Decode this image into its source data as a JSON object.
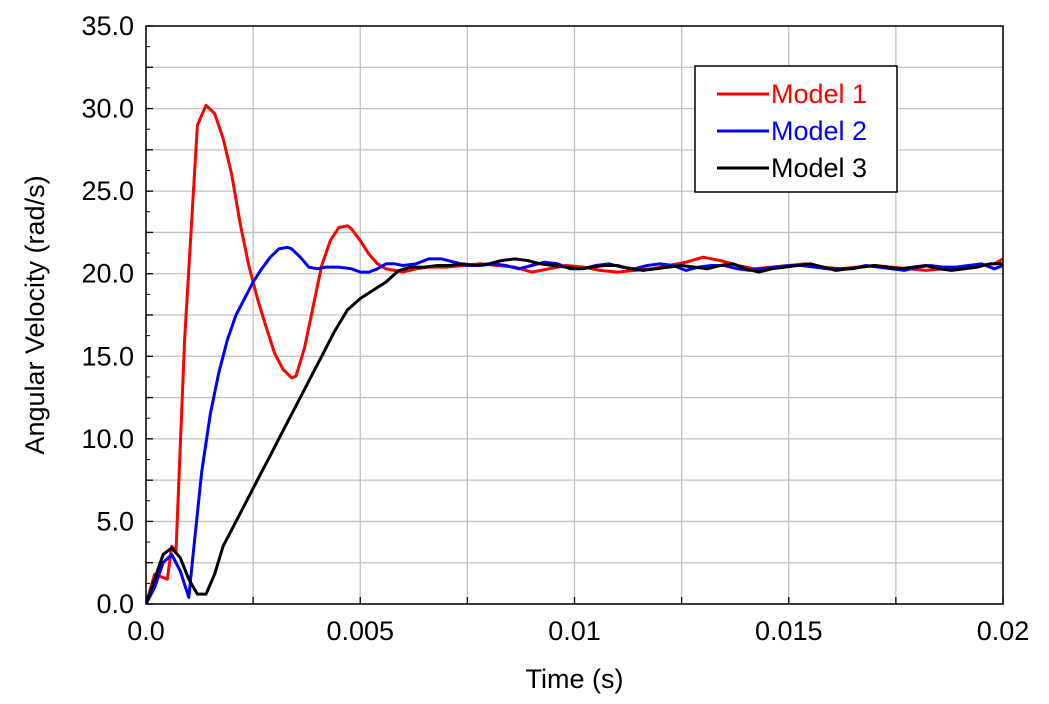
{
  "chart_data": {
    "type": "line",
    "title": "",
    "xlabel": "Time (s)",
    "ylabel": "Angular Velocity (rad/s)",
    "xlim": [
      0,
      0.02
    ],
    "ylim": [
      0,
      35
    ],
    "x_ticks": [
      0,
      0.005,
      0.01,
      0.015,
      0.02
    ],
    "x_tick_labels": [
      "0.0",
      "0.005",
      "0.01",
      "0.015",
      "0.02"
    ],
    "y_ticks": [
      0,
      5,
      10,
      15,
      20,
      25,
      30,
      35
    ],
    "y_tick_labels": [
      "0.0",
      "5.0",
      "10.0",
      "15.0",
      "20.0",
      "25.0",
      "30.0",
      "35.0"
    ],
    "x_minor_step": 0.0025,
    "y_minor_step": 2.5,
    "grid": true,
    "legend_position": "top-right",
    "series": [
      {
        "name": "Model 1",
        "color": "#ff0000",
        "x": [
          0,
          0.0002,
          0.0005,
          0.0006,
          0.0007,
          0.0009,
          0.0012,
          0.0014,
          0.0016,
          0.0018,
          0.002,
          0.0022,
          0.0024,
          0.0026,
          0.0028,
          0.003,
          0.0032,
          0.0034,
          0.0035,
          0.0037,
          0.0039,
          0.0041,
          0.0043,
          0.0045,
          0.0047,
          0.0048,
          0.005,
          0.0052,
          0.0054,
          0.0056,
          0.0058,
          0.006,
          0.0063,
          0.0066,
          0.007,
          0.0074,
          0.0078,
          0.0082,
          0.0086,
          0.009,
          0.0094,
          0.0098,
          0.0102,
          0.0106,
          0.011,
          0.0114,
          0.0118,
          0.0122,
          0.0126,
          0.013,
          0.0134,
          0.0138,
          0.0142,
          0.0146,
          0.015,
          0.0154,
          0.0158,
          0.0162,
          0.0166,
          0.017,
          0.0174,
          0.0178,
          0.0182,
          0.0186,
          0.019,
          0.0194,
          0.0198,
          0.02
        ],
        "y": [
          0.0,
          1.8,
          1.5,
          3.5,
          3.2,
          16.0,
          29.0,
          30.2,
          29.7,
          28.2,
          26.0,
          23.0,
          20.5,
          18.5,
          16.8,
          15.2,
          14.2,
          13.7,
          13.8,
          15.5,
          18.0,
          20.5,
          22.0,
          22.8,
          22.9,
          22.7,
          22.0,
          21.2,
          20.6,
          20.3,
          20.2,
          20.1,
          20.3,
          20.4,
          20.4,
          20.5,
          20.6,
          20.5,
          20.4,
          20.1,
          20.3,
          20.5,
          20.4,
          20.2,
          20.1,
          20.2,
          20.3,
          20.5,
          20.7,
          21.0,
          20.8,
          20.5,
          20.3,
          20.4,
          20.5,
          20.6,
          20.4,
          20.3,
          20.4,
          20.5,
          20.4,
          20.3,
          20.2,
          20.3,
          20.4,
          20.5,
          20.6,
          20.9
        ]
      },
      {
        "name": "Model 2",
        "color": "#0000ff",
        "x": [
          0,
          0.0002,
          0.0004,
          0.0006,
          0.0008,
          0.001,
          0.0011,
          0.0013,
          0.0015,
          0.0017,
          0.0019,
          0.0021,
          0.0023,
          0.0025,
          0.0027,
          0.0029,
          0.0031,
          0.0033,
          0.0034,
          0.0036,
          0.0038,
          0.004,
          0.0042,
          0.0045,
          0.0048,
          0.005,
          0.0052,
          0.0054,
          0.0056,
          0.0058,
          0.006,
          0.0063,
          0.0066,
          0.0069,
          0.0072,
          0.0075,
          0.0078,
          0.0081,
          0.0084,
          0.0087,
          0.009,
          0.0093,
          0.0096,
          0.0099,
          0.0102,
          0.0105,
          0.0108,
          0.0111,
          0.0114,
          0.0117,
          0.012,
          0.0123,
          0.0126,
          0.0129,
          0.0132,
          0.0135,
          0.0138,
          0.0141,
          0.0144,
          0.0147,
          0.015,
          0.0153,
          0.0156,
          0.0159,
          0.0162,
          0.0165,
          0.0168,
          0.0171,
          0.0174,
          0.0177,
          0.018,
          0.0183,
          0.0186,
          0.0189,
          0.0192,
          0.0195,
          0.0198,
          0.02
        ],
        "y": [
          0.0,
          1.0,
          2.5,
          3.0,
          2.0,
          0.4,
          3.0,
          8.0,
          11.5,
          14.0,
          16.0,
          17.5,
          18.5,
          19.5,
          20.3,
          21.0,
          21.5,
          21.6,
          21.5,
          21.0,
          20.4,
          20.3,
          20.4,
          20.4,
          20.3,
          20.1,
          20.1,
          20.3,
          20.6,
          20.6,
          20.5,
          20.6,
          20.9,
          20.9,
          20.7,
          20.5,
          20.5,
          20.6,
          20.5,
          20.3,
          20.5,
          20.7,
          20.6,
          20.3,
          20.3,
          20.5,
          20.6,
          20.4,
          20.3,
          20.5,
          20.6,
          20.5,
          20.2,
          20.4,
          20.5,
          20.5,
          20.3,
          20.2,
          20.3,
          20.4,
          20.5,
          20.5,
          20.4,
          20.3,
          20.3,
          20.3,
          20.5,
          20.4,
          20.3,
          20.2,
          20.4,
          20.5,
          20.4,
          20.4,
          20.5,
          20.6,
          20.3,
          20.5
        ]
      },
      {
        "name": "Model 3",
        "color": "#000000",
        "x": [
          0,
          0.0002,
          0.0004,
          0.0006,
          0.0008,
          0.001,
          0.0012,
          0.0014,
          0.0016,
          0.0018,
          0.002,
          0.0023,
          0.0026,
          0.0029,
          0.0032,
          0.0035,
          0.0038,
          0.0041,
          0.0044,
          0.0047,
          0.005,
          0.0053,
          0.0056,
          0.0059,
          0.0062,
          0.0065,
          0.0068,
          0.0071,
          0.0074,
          0.0077,
          0.008,
          0.0083,
          0.0086,
          0.0089,
          0.0092,
          0.0095,
          0.0098,
          0.0101,
          0.0104,
          0.0107,
          0.011,
          0.0113,
          0.0116,
          0.0119,
          0.0122,
          0.0125,
          0.0128,
          0.0131,
          0.0134,
          0.0137,
          0.014,
          0.0143,
          0.0146,
          0.0149,
          0.0152,
          0.0155,
          0.0158,
          0.0161,
          0.0164,
          0.0167,
          0.017,
          0.0173,
          0.0176,
          0.0179,
          0.0182,
          0.0185,
          0.0188,
          0.0191,
          0.0194,
          0.0197,
          0.02
        ],
        "y": [
          0.0,
          1.5,
          3.0,
          3.4,
          2.8,
          1.5,
          0.6,
          0.6,
          1.8,
          3.5,
          4.5,
          6.0,
          7.5,
          9.0,
          10.5,
          12.0,
          13.5,
          15.0,
          16.5,
          17.8,
          18.5,
          19.0,
          19.5,
          20.2,
          20.4,
          20.4,
          20.5,
          20.5,
          20.6,
          20.5,
          20.6,
          20.8,
          20.9,
          20.8,
          20.6,
          20.5,
          20.4,
          20.3,
          20.4,
          20.5,
          20.5,
          20.3,
          20.2,
          20.3,
          20.4,
          20.5,
          20.4,
          20.3,
          20.5,
          20.6,
          20.3,
          20.1,
          20.3,
          20.4,
          20.5,
          20.6,
          20.4,
          20.2,
          20.3,
          20.4,
          20.5,
          20.4,
          20.3,
          20.4,
          20.5,
          20.3,
          20.2,
          20.3,
          20.4,
          20.6,
          20.6
        ]
      }
    ]
  }
}
